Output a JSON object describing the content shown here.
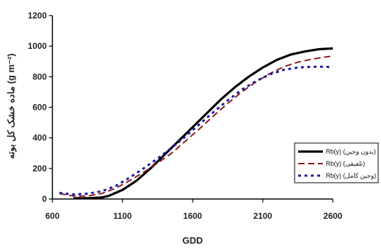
{
  "chart_data": {
    "type": "line",
    "xlabel": "GDD",
    "ylabel": "ماده خشک کل بوته (g m⁻²)",
    "xlim": [
      600,
      2600
    ],
    "ylim": [
      0,
      1200
    ],
    "xticks": [
      600,
      1100,
      1600,
      2100,
      2600
    ],
    "xtick_labels": [
      "600",
      "1100",
      "1600",
      "2100",
      "2600"
    ],
    "yticks": [
      0,
      200,
      400,
      600,
      800,
      1000,
      1200
    ],
    "ytick_labels": [
      "0",
      "200",
      "400",
      "600",
      "800",
      "1000",
      "1200"
    ],
    "grid": false,
    "legend_position": "right",
    "series": [
      {
        "name": "Rb(y) (بدون وجین)",
        "style": "solid",
        "color": "#000000",
        "x": [
          750,
          850,
          950,
          1000,
          1100,
          1200,
          1300,
          1400,
          1500,
          1600,
          1700,
          1800,
          1900,
          2000,
          2100,
          2200,
          2300,
          2400,
          2500,
          2600
        ],
        "y": [
          5,
          5,
          10,
          20,
          60,
          120,
          200,
          290,
          380,
          470,
          560,
          650,
          730,
          800,
          860,
          910,
          945,
          965,
          980,
          985
        ]
      },
      {
        "name": "Rb(y) (تلفیقی)",
        "style": "dash",
        "color": "#8b1a1a",
        "x": [
          650,
          750,
          850,
          950,
          1050,
          1150,
          1250,
          1350,
          1450,
          1550,
          1650,
          1750,
          1850,
          1950,
          2050,
          2150,
          2250,
          2350,
          2450,
          2550,
          2600
        ],
        "y": [
          35,
          20,
          20,
          35,
          70,
          120,
          175,
          235,
          300,
          380,
          460,
          545,
          625,
          700,
          765,
          820,
          865,
          895,
          915,
          930,
          935
        ]
      },
      {
        "name": "Rb(y) (وجین کامل)",
        "style": "dot",
        "color": "#1a1aa0",
        "x": [
          650,
          750,
          850,
          950,
          1050,
          1150,
          1250,
          1350,
          1450,
          1550,
          1650,
          1750,
          1850,
          1950,
          2050,
          2150,
          2250,
          2350,
          2450,
          2550,
          2600
        ],
        "y": [
          40,
          30,
          35,
          50,
          85,
          140,
          200,
          265,
          335,
          410,
          490,
          570,
          645,
          715,
          770,
          815,
          845,
          860,
          865,
          865,
          862
        ]
      }
    ]
  }
}
